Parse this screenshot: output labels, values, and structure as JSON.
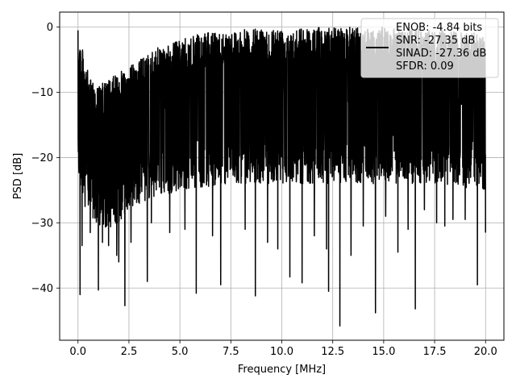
{
  "chart_data": {
    "type": "line",
    "title": "",
    "xlabel": "Frequency [MHz]",
    "ylabel": "PSD [dB]",
    "xlim": [
      -0.9,
      20.9
    ],
    "ylim": [
      -48,
      2.3
    ],
    "xticks": [
      0.0,
      2.5,
      5.0,
      7.5,
      10.0,
      12.5,
      15.0,
      17.5,
      20.0
    ],
    "xtick_labels": [
      "0.0",
      "2.5",
      "5.0",
      "7.5",
      "10.0",
      "12.5",
      "15.0",
      "17.5",
      "20.0"
    ],
    "yticks": [
      0,
      -10,
      -20,
      -30,
      -40
    ],
    "ytick_labels": [
      "0",
      "−10",
      "−20",
      "−30",
      "−40"
    ],
    "grid": true,
    "legend": {
      "placement": "top-right",
      "lines": [
        "ENOB: -4.84 bits",
        "SNR: -27.35 dB",
        "SINAD: -27.36 dB",
        "SFDR: 0.09"
      ]
    },
    "series": [
      {
        "color": "#000000",
        "band_upper": [
          [
            0.0,
            -0.5
          ],
          [
            0.5,
            -7
          ],
          [
            1.0,
            -9
          ],
          [
            1.5,
            -8
          ],
          [
            2.0,
            -7
          ],
          [
            2.5,
            -6
          ],
          [
            3.0,
            -5
          ],
          [
            3.5,
            -4
          ],
          [
            4.0,
            -3
          ],
          [
            5.0,
            -2
          ],
          [
            6.0,
            -1
          ],
          [
            7.5,
            -0.5
          ],
          [
            10.0,
            0
          ],
          [
            12.5,
            0
          ],
          [
            15.0,
            0
          ],
          [
            17.5,
            -0.5
          ],
          [
            20.0,
            -1
          ]
        ],
        "band_lower": [
          [
            0.0,
            -23
          ],
          [
            0.5,
            -28
          ],
          [
            1.0,
            -31
          ],
          [
            1.5,
            -31
          ],
          [
            2.0,
            -30
          ],
          [
            2.5,
            -28
          ],
          [
            3.0,
            -27
          ],
          [
            4.0,
            -26
          ],
          [
            5.0,
            -25
          ],
          [
            7.5,
            -24
          ],
          [
            10.0,
            -24
          ],
          [
            12.5,
            -24
          ],
          [
            15.0,
            -24
          ],
          [
            17.5,
            -24
          ],
          [
            20.0,
            -25
          ]
        ],
        "dips": [
          [
            0.1,
            -41
          ],
          [
            0.2,
            -33.5
          ],
          [
            0.35,
            -27.5
          ],
          [
            0.6,
            -31.5
          ],
          [
            1.0,
            -40.3
          ],
          [
            1.2,
            -33
          ],
          [
            1.5,
            -33.5
          ],
          [
            1.9,
            -35
          ],
          [
            2.0,
            -36
          ],
          [
            2.3,
            -42.7
          ],
          [
            2.6,
            -33
          ],
          [
            3.4,
            -39
          ],
          [
            3.6,
            -30
          ],
          [
            4.5,
            -31.5
          ],
          [
            5.25,
            -31
          ],
          [
            5.8,
            -40.8
          ],
          [
            6.6,
            -32
          ],
          [
            7.0,
            -39.5
          ],
          [
            8.2,
            -31
          ],
          [
            8.7,
            -41.2
          ],
          [
            9.3,
            -33
          ],
          [
            9.8,
            -34
          ],
          [
            10.4,
            -38.3
          ],
          [
            11.0,
            -39.2
          ],
          [
            11.6,
            -32
          ],
          [
            12.2,
            -34
          ],
          [
            12.3,
            -40.5
          ],
          [
            12.85,
            -45.8
          ],
          [
            13.4,
            -35
          ],
          [
            14.0,
            -30.5
          ],
          [
            14.6,
            -43.8
          ],
          [
            15.1,
            -29
          ],
          [
            15.7,
            -34.5
          ],
          [
            16.2,
            -31
          ],
          [
            16.55,
            -43.2
          ],
          [
            17.0,
            -28
          ],
          [
            17.6,
            -30
          ],
          [
            18.0,
            -30.5
          ],
          [
            18.4,
            -29.5
          ],
          [
            19.0,
            -29.5
          ],
          [
            19.6,
            -39.5
          ],
          [
            20.0,
            -31.5
          ]
        ]
      }
    ]
  }
}
